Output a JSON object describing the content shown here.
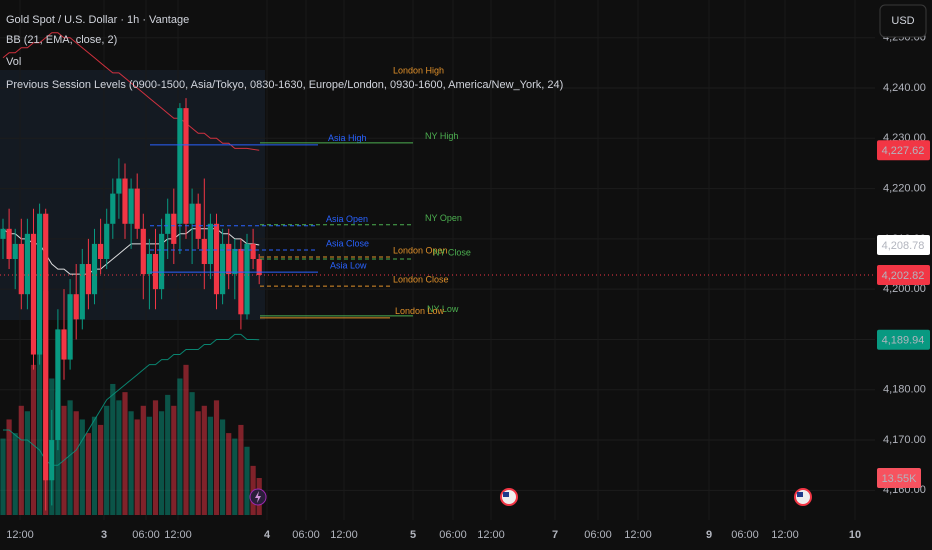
{
  "header": {
    "symbol": "Gold Spot / U.S. Dollar · 1h · Vantage",
    "indicators": [
      "BB (21, EMA, close, 2)",
      "Vol",
      "Previous Session Levels (0900-1500, Asia/Tokyo, 0830-1630, Europe/London, 0930-1600, America/New_York, 24)"
    ]
  },
  "currency_button": "USD",
  "chart_data": {
    "type": "candlestick",
    "ylim": [
      4154.1,
      4257.5
    ],
    "yticks": [
      {
        "value": 4160,
        "label": "4,160.00"
      },
      {
        "value": 4170,
        "label": "4,170.00"
      },
      {
        "value": 4180,
        "label": "4,180.00"
      },
      {
        "value": 4190,
        "label": "4,190.00"
      },
      {
        "value": 4200,
        "label": "4,200.00"
      },
      {
        "value": 4210,
        "label": "4,210.00"
      },
      {
        "value": 4220,
        "label": "4,220.00"
      },
      {
        "value": 4230,
        "label": "4,230.00"
      },
      {
        "value": 4240,
        "label": "4,240.00"
      },
      {
        "value": 4250,
        "label": "4,250.00"
      }
    ],
    "x_axis_labels": [
      "12:00",
      "3",
      "06:00",
      "12:00",
      "4",
      "06:00",
      "12:00",
      "5",
      "06:00",
      "12:00",
      "7",
      "06:00",
      "12:00",
      "9",
      "06:00",
      "12:00",
      "10"
    ],
    "up_color": "#089981",
    "down_color": "#f23645",
    "open": [
      4210,
      4212,
      4206,
      4209,
      4199,
      4211,
      4187,
      4215,
      4162,
      4170,
      4192,
      4186,
      4199,
      4194,
      4205,
      4199,
      4209,
      4206,
      4213,
      4219,
      4222,
      4213,
      4220,
      4212,
      4203,
      4207,
      4200,
      4211,
      4215,
      4213,
      4236,
      4213,
      4217,
      4210,
      4205,
      4213,
      4199,
      4209,
      4203,
      4208,
      4195,
      4209,
      4206
    ],
    "high": [
      4214,
      4216,
      4212,
      4214,
      4214,
      4216,
      4217,
      4216,
      4176,
      4196,
      4200,
      4202,
      4205,
      4208,
      4210,
      4212,
      4214,
      4216,
      4222,
      4226,
      4225,
      4222,
      4223,
      4215,
      4210,
      4212,
      4214,
      4218,
      4220,
      4237,
      4238,
      4220,
      4219,
      4222,
      4215,
      4215,
      4212,
      4212,
      4210,
      4210,
      4211,
      4212,
      4207
    ],
    "low": [
      4206,
      4204,
      4200,
      4196,
      4196,
      4184,
      4185,
      4156,
      4157,
      4168,
      4182,
      4184,
      4190,
      4192,
      4196,
      4197,
      4203,
      4204,
      4210,
      4214,
      4210,
      4208,
      4210,
      4198,
      4196,
      4196,
      4198,
      4206,
      4205,
      4207,
      4210,
      4205,
      4208,
      4200,
      4202,
      4196,
      4197,
      4200,
      4198,
      4192,
      4194,
      4204,
      4201
    ],
    "close": [
      4212,
      4206,
      4209,
      4199,
      4211,
      4187,
      4215,
      4162,
      4170,
      4192,
      4186,
      4199,
      4194,
      4205,
      4199,
      4209,
      4206,
      4213,
      4219,
      4222,
      4213,
      4220,
      4212,
      4203,
      4207,
      4200,
      4211,
      4215,
      4209,
      4236,
      4213,
      4217,
      4210,
      4205,
      4213,
      4199,
      4209,
      4203,
      4208,
      4195,
      4209,
      4206,
      4202.82
    ],
    "volume": [
      28,
      35,
      30,
      40,
      38,
      55,
      60,
      82,
      50,
      45,
      40,
      42,
      38,
      35,
      30,
      36,
      33,
      40,
      48,
      42,
      45,
      38,
      35,
      40,
      36,
      42,
      38,
      44,
      40,
      50,
      55,
      45,
      38,
      40,
      36,
      42,
      35,
      30,
      28,
      33,
      25,
      18,
      13.55
    ],
    "bollinger": [
      {
        "name": "upper",
        "color": "#f23645",
        "values": [
          4246,
          4247,
          4247,
          4248,
          4248,
          4249,
          4249,
          4250,
          4251,
          4251,
          4250,
          4250,
          4249,
          4248,
          4247,
          4246,
          4245,
          4244,
          4243,
          4243,
          4242,
          4241,
          4240,
          4239,
          4238,
          4237,
          4236,
          4235,
          4234,
          4234,
          4233,
          4232,
          4231,
          4231,
          4230,
          4230,
          4229,
          4229,
          4228,
          4228,
          4228,
          4227.8,
          4227.62
        ]
      },
      {
        "name": "basis",
        "color": "#ffffff",
        "values": [
          4212,
          4211,
          4211,
          4210,
          4210,
          4209,
          4209,
          4207,
          4205,
          4204,
          4204,
          4203,
          4203,
          4203,
          4203,
          4204,
          4204,
          4205,
          4206,
          4207,
          4208,
          4209,
          4209,
          4209,
          4209,
          4209,
          4209,
          4210,
          4210,
          4211,
          4211,
          4212,
          4212,
          4212,
          4212,
          4212,
          4211,
          4211,
          4210,
          4210,
          4209,
          4209,
          4208.78
        ]
      },
      {
        "name": "lower",
        "color": "#089981",
        "values": [
          4172,
          4172,
          4171,
          4170,
          4170,
          4169,
          4168,
          4166,
          4165,
          4165,
          4166,
          4167,
          4168,
          4170,
          4172,
          4174,
          4176,
          4178,
          4179,
          4180,
          4181,
          4182,
          4183,
          4184,
          4185,
          4185,
          4186,
          4186,
          4187,
          4187,
          4188,
          4188,
          4188,
          4189,
          4189,
          4190,
          4190,
          4190,
          4191,
          4191,
          4190,
          4190,
          4189.94
        ]
      }
    ],
    "levels": [
      {
        "name": "London High",
        "value": 4242.2,
        "color": "#e0902a",
        "style": "solid"
      },
      {
        "name": "Asia High",
        "value": 4228.7,
        "color": "#2962ff",
        "style": "solid"
      },
      {
        "name": "NY High",
        "value": 4229.1,
        "color": "#4caf50",
        "style": "solid"
      },
      {
        "name": "Asia Open",
        "value": 4212.6,
        "color": "#2962ff",
        "style": "dashed"
      },
      {
        "name": "NY Open",
        "value": 4212.8,
        "color": "#4caf50",
        "style": "dashed"
      },
      {
        "name": "Asia Close",
        "value": 4207.8,
        "color": "#2962ff",
        "style": "dashed"
      },
      {
        "name": "London Open",
        "value": 4206.4,
        "color": "#e0902a",
        "style": "dashed"
      },
      {
        "name": "NY Close",
        "value": 4206.0,
        "color": "#4caf50",
        "style": "dashed"
      },
      {
        "name": "Asia Low",
        "value": 4203.4,
        "color": "#2962ff",
        "style": "solid"
      },
      {
        "name": "London Close",
        "value": 4200.6,
        "color": "#e0902a",
        "style": "dashed"
      },
      {
        "name": "NY Low",
        "value": 4194.7,
        "color": "#4caf50",
        "style": "solid"
      },
      {
        "name": "London Low",
        "value": 4194.3,
        "color": "#e0902a",
        "style": "solid"
      }
    ],
    "price_labels": [
      {
        "value": 4227.62,
        "label": "4,227.62",
        "color": "#f23645"
      },
      {
        "value": 4208.78,
        "label": "4,208.78",
        "color": "#ffffff"
      },
      {
        "value": 4202.82,
        "label": "4,202.82",
        "color": "#f23645"
      },
      {
        "value": 4189.94,
        "label": "4,189.94",
        "color": "#089981"
      }
    ],
    "volume_label": {
      "value": 13.55,
      "label": "13.55K",
      "color": "#f7525f"
    }
  }
}
